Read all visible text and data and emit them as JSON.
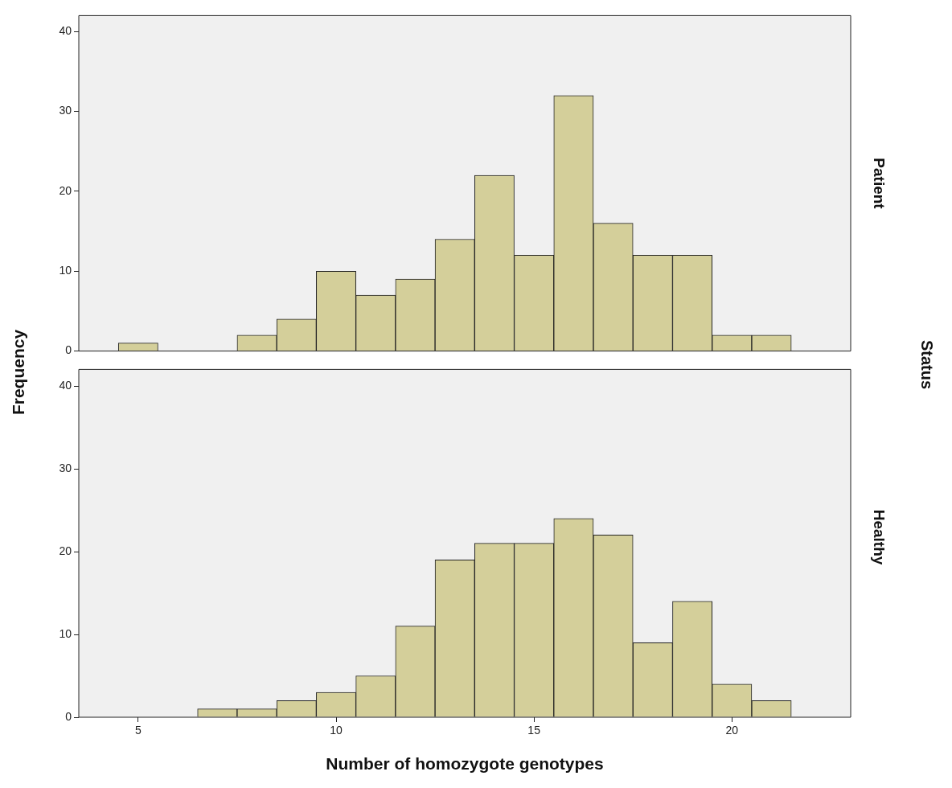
{
  "chart_data": [
    {
      "type": "histogram",
      "y2label": "Patient",
      "ylabel": "Frequency",
      "annotations": [
        "Status"
      ],
      "bins": [
        4.5,
        5.5,
        6.5,
        7.5,
        8.5,
        9.5,
        10.5,
        11.5,
        12.5,
        13.5,
        14.5,
        15.5,
        16.5,
        17.5,
        18.5,
        19.5,
        20.5,
        21.5
      ],
      "values": [
        1,
        0,
        0,
        2,
        4,
        10,
        7,
        9,
        14,
        22,
        12,
        32,
        16,
        12,
        12,
        2,
        2
      ],
      "color": "#d4cf9a",
      "xlim": [
        3.5,
        23
      ],
      "xticks": [
        5,
        10,
        15,
        20
      ],
      "ylim": [
        0,
        42
      ],
      "yticks": [
        0,
        10,
        20,
        30,
        40
      ],
      "grid": false,
      "tick_labels": "y"
    },
    {
      "type": "histogram",
      "y2label": "Healthy",
      "xlabel": "Number of homozygote genotypes",
      "bins": [
        6.5,
        7.5,
        8.5,
        9.5,
        10.5,
        11.5,
        12.5,
        13.5,
        14.5,
        15.5,
        16.5,
        17.5,
        18.5,
        19.5,
        20.5,
        21.5
      ],
      "values": [
        1,
        1,
        2,
        3,
        5,
        11,
        19,
        21,
        21,
        24,
        22,
        9,
        14,
        4,
        2
      ],
      "color": "#d4cf9a",
      "xlim": [
        3.5,
        23
      ],
      "xticks": [
        5,
        10,
        15,
        20
      ],
      "ylim": [
        0,
        42
      ],
      "yticks": [
        0,
        10,
        20,
        30,
        40
      ],
      "grid": false
    }
  ]
}
